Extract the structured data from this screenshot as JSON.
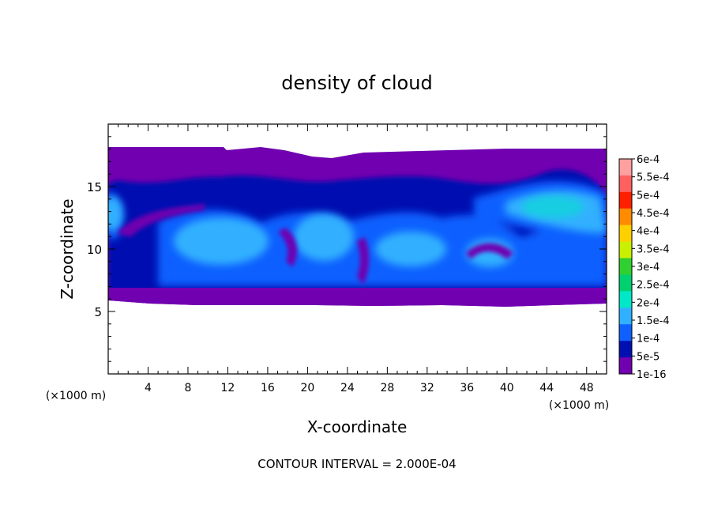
{
  "chart_data": {
    "type": "heatmap",
    "title": "density of cloud",
    "xlabel": "X-coordinate",
    "ylabel": "Z-coordinate",
    "x_unit": "(×1000 m)",
    "y_unit": "(×1000 m)",
    "xlim": [
      0,
      50
    ],
    "ylim": [
      0,
      20
    ],
    "x_ticks": [
      4,
      8,
      12,
      16,
      20,
      24,
      28,
      32,
      36,
      40,
      44,
      48
    ],
    "y_ticks": [
      5,
      10,
      15
    ],
    "footer": "CONTOUR INTERVAL = 2.000E-04",
    "colorbar": {
      "levels": [
        "6e-4",
        "5.5e-4",
        "5e-4",
        "4.5e-4",
        "4e-4",
        "3.5e-4",
        "3e-4",
        "2.5e-4",
        "2e-4",
        "1.5e-4",
        "1e-4",
        "5e-5",
        "1e-16"
      ],
      "colors": [
        "#ffa0a0",
        "#ff6060",
        "#ff2000",
        "#ff8c00",
        "#ffd000",
        "#c8f000",
        "#30d030",
        "#00d070",
        "#00e8c8",
        "#30b0ff",
        "#1060ff",
        "#0010b0",
        "#7000b0"
      ]
    },
    "cloud_layer": {
      "z_bottom": 6,
      "z_top": 18
    }
  }
}
